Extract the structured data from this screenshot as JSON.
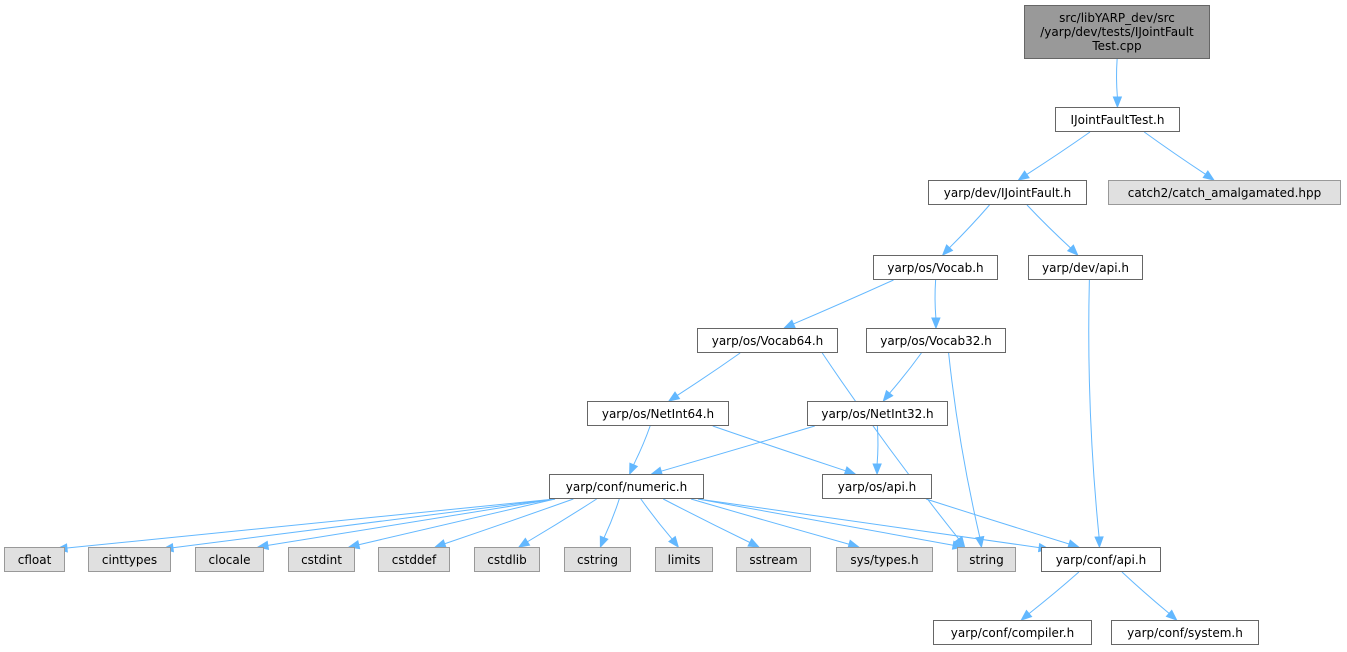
{
  "graph": {
    "edge_color": "#63b8ff",
    "nodes": [
      {
        "id": "root",
        "label": "src/libYARP_dev/src/yarp/dev/tests/IJointFaultTest.cpp",
        "lines": [
          "src/libYARP_dev/src",
          "/yarp/dev/tests/IJointFault",
          "Test.cpp"
        ],
        "kind": "root"
      },
      {
        "id": "ijft",
        "label": "IJointFaultTest.h",
        "kind": "local"
      },
      {
        "id": "ijf",
        "label": "yarp/dev/IJointFault.h",
        "kind": "local"
      },
      {
        "id": "catch2",
        "label": "catch2/catch_amalgamated.hpp",
        "kind": "external"
      },
      {
        "id": "vocab",
        "label": "yarp/os/Vocab.h",
        "kind": "local"
      },
      {
        "id": "devapi",
        "label": "yarp/dev/api.h",
        "kind": "local"
      },
      {
        "id": "vocab64",
        "label": "yarp/os/Vocab64.h",
        "kind": "local"
      },
      {
        "id": "vocab32",
        "label": "yarp/os/Vocab32.h",
        "kind": "local"
      },
      {
        "id": "netint64",
        "label": "yarp/os/NetInt64.h",
        "kind": "local"
      },
      {
        "id": "netint32",
        "label": "yarp/os/NetInt32.h",
        "kind": "local"
      },
      {
        "id": "numeric",
        "label": "yarp/conf/numeric.h",
        "kind": "local"
      },
      {
        "id": "osapi",
        "label": "yarp/os/api.h",
        "kind": "local"
      },
      {
        "id": "cfloat",
        "label": "cfloat",
        "kind": "external"
      },
      {
        "id": "cinttypes",
        "label": "cinttypes",
        "kind": "external"
      },
      {
        "id": "clocale",
        "label": "clocale",
        "kind": "external"
      },
      {
        "id": "cstdint",
        "label": "cstdint",
        "kind": "external"
      },
      {
        "id": "cstddef",
        "label": "cstddef",
        "kind": "external"
      },
      {
        "id": "cstdlib",
        "label": "cstdlib",
        "kind": "external"
      },
      {
        "id": "cstring",
        "label": "cstring",
        "kind": "external"
      },
      {
        "id": "limits",
        "label": "limits",
        "kind": "external"
      },
      {
        "id": "sstream",
        "label": "sstream",
        "kind": "external"
      },
      {
        "id": "systypes",
        "label": "sys/types.h",
        "kind": "external"
      },
      {
        "id": "string",
        "label": "string",
        "kind": "external"
      },
      {
        "id": "confapi",
        "label": "yarp/conf/api.h",
        "kind": "local"
      },
      {
        "id": "compiler",
        "label": "yarp/conf/compiler.h",
        "kind": "local"
      },
      {
        "id": "system",
        "label": "yarp/conf/system.h",
        "kind": "local"
      }
    ],
    "edges": [
      [
        "root",
        "ijft"
      ],
      [
        "ijft",
        "ijf"
      ],
      [
        "ijft",
        "catch2"
      ],
      [
        "ijf",
        "vocab"
      ],
      [
        "ijf",
        "devapi"
      ],
      [
        "vocab",
        "vocab64"
      ],
      [
        "vocab",
        "vocab32"
      ],
      [
        "devapi",
        "confapi"
      ],
      [
        "vocab64",
        "netint64"
      ],
      [
        "vocab64",
        "string"
      ],
      [
        "vocab32",
        "netint32"
      ],
      [
        "vocab32",
        "string"
      ],
      [
        "netint64",
        "numeric"
      ],
      [
        "netint64",
        "osapi"
      ],
      [
        "netint32",
        "numeric"
      ],
      [
        "netint32",
        "osapi"
      ],
      [
        "numeric",
        "cfloat"
      ],
      [
        "numeric",
        "cinttypes"
      ],
      [
        "numeric",
        "clocale"
      ],
      [
        "numeric",
        "cstdint"
      ],
      [
        "numeric",
        "cstddef"
      ],
      [
        "numeric",
        "cstdlib"
      ],
      [
        "numeric",
        "cstring"
      ],
      [
        "numeric",
        "limits"
      ],
      [
        "numeric",
        "sstream"
      ],
      [
        "numeric",
        "systypes"
      ],
      [
        "numeric",
        "string"
      ],
      [
        "numeric",
        "confapi"
      ],
      [
        "osapi",
        "confapi"
      ],
      [
        "confapi",
        "compiler"
      ],
      [
        "confapi",
        "system"
      ]
    ]
  }
}
